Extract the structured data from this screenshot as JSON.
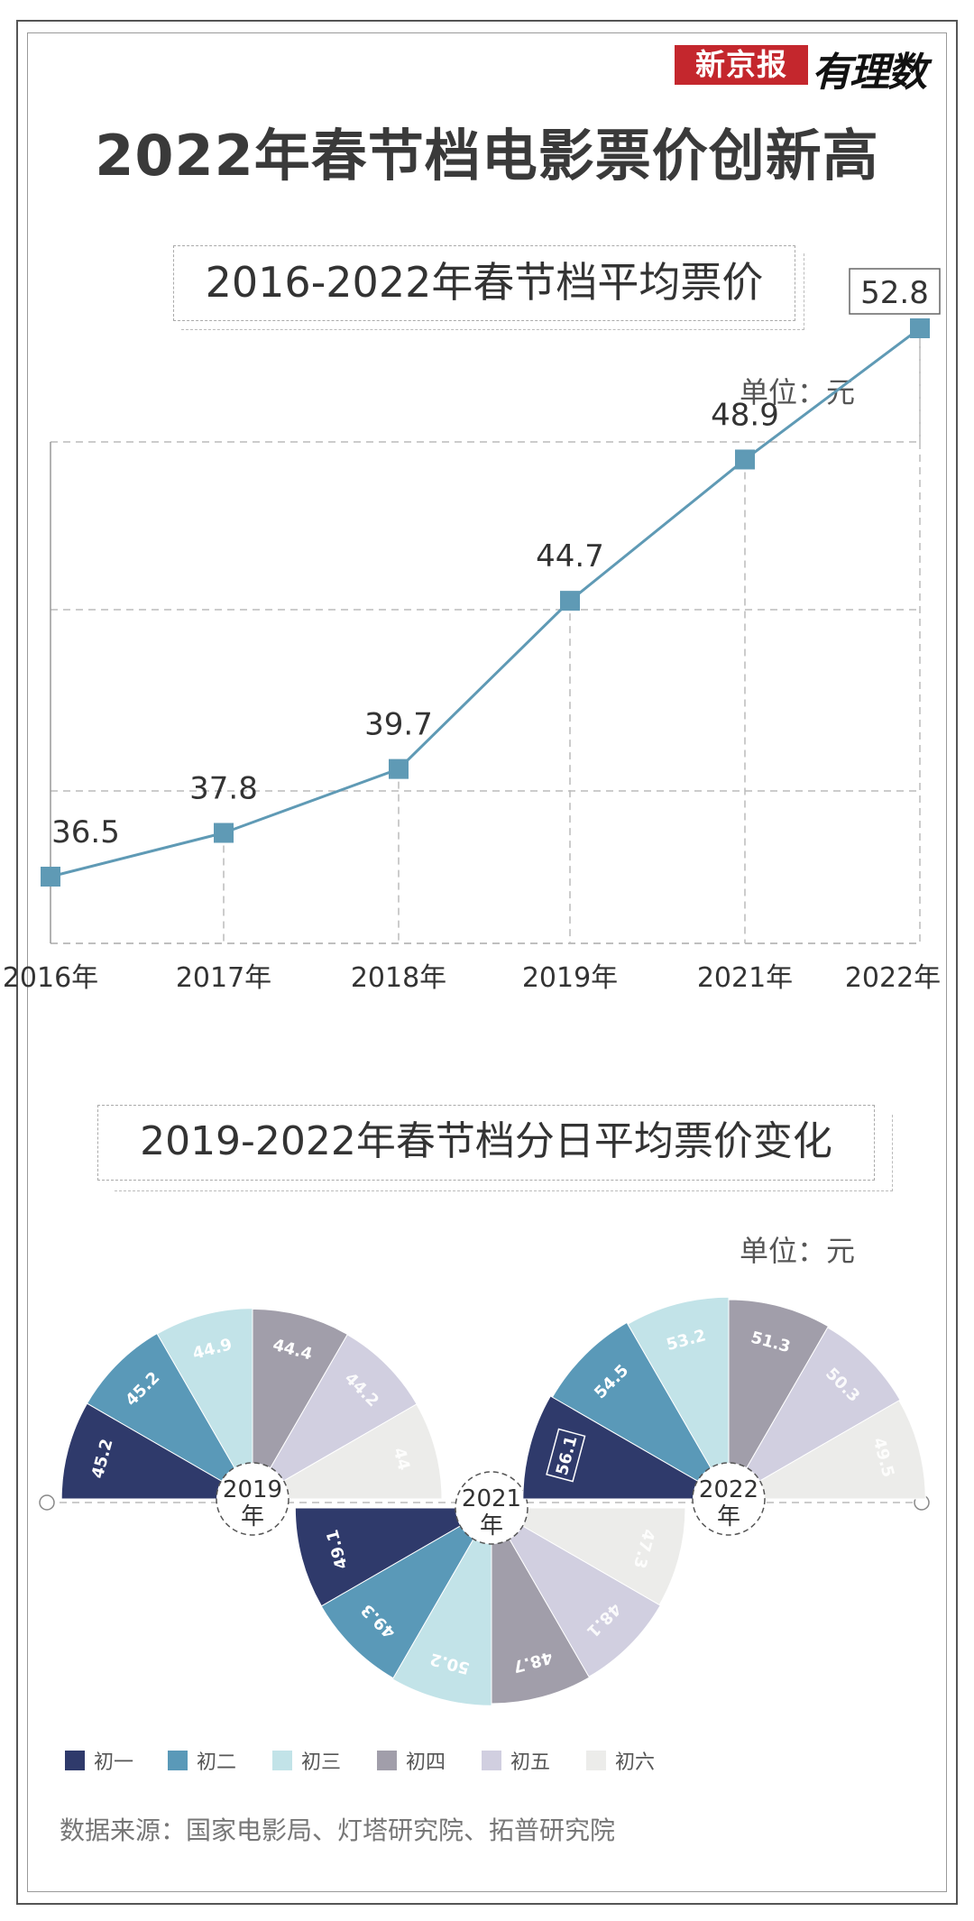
{
  "brand": {
    "name": "新京报",
    "column": "有理数"
  },
  "title": "2022年春节档电影票价创新高",
  "line_chart": {
    "subtitle": "2016-2022年春节档平均票价",
    "unit": "单位：元"
  },
  "pie_chart": {
    "subtitle": "2019-2022年春节档分日平均票价变化",
    "unit": "单位：元"
  },
  "source": "数据来源：国家电影局、灯塔研究院、拓普研究院",
  "colors": {
    "line": "#5f9ab5",
    "day_colors": [
      "#2f3a6b",
      "#5a99b8",
      "#c2e3e8",
      "#a19eaa",
      "#d1cfe0",
      "#ececea"
    ]
  },
  "chart_data": [
    {
      "type": "line",
      "categories": [
        "2016年",
        "2017年",
        "2018年",
        "2019年",
        "2021年",
        "2022年"
      ],
      "values": [
        36.5,
        37.8,
        39.7,
        44.7,
        48.9,
        52.8
      ],
      "highlight": "2022年",
      "title": "2016-2022年春节档平均票价",
      "unit": "元",
      "grid": true
    },
    {
      "type": "pie",
      "legend": [
        "初一",
        "初二",
        "初三",
        "初四",
        "初五",
        "初六"
      ],
      "legend_placement": "bottom-left",
      "series": [
        {
          "name": "2019年",
          "values": [
            45.2,
            45.2,
            44.9,
            44.4,
            44.2,
            44
          ],
          "orientation": "upper"
        },
        {
          "name": "2021年",
          "values": [
            49.1,
            49.3,
            50.2,
            48.7,
            48.1,
            47.3
          ],
          "orientation": "lower"
        },
        {
          "name": "2022年",
          "values": [
            56.1,
            54.5,
            53.2,
            51.3,
            50.3,
            49.5
          ],
          "orientation": "upper",
          "highlight_index": 0
        }
      ],
      "title": "2019-2022年春节档分日平均票价变化",
      "unit": "元"
    }
  ]
}
